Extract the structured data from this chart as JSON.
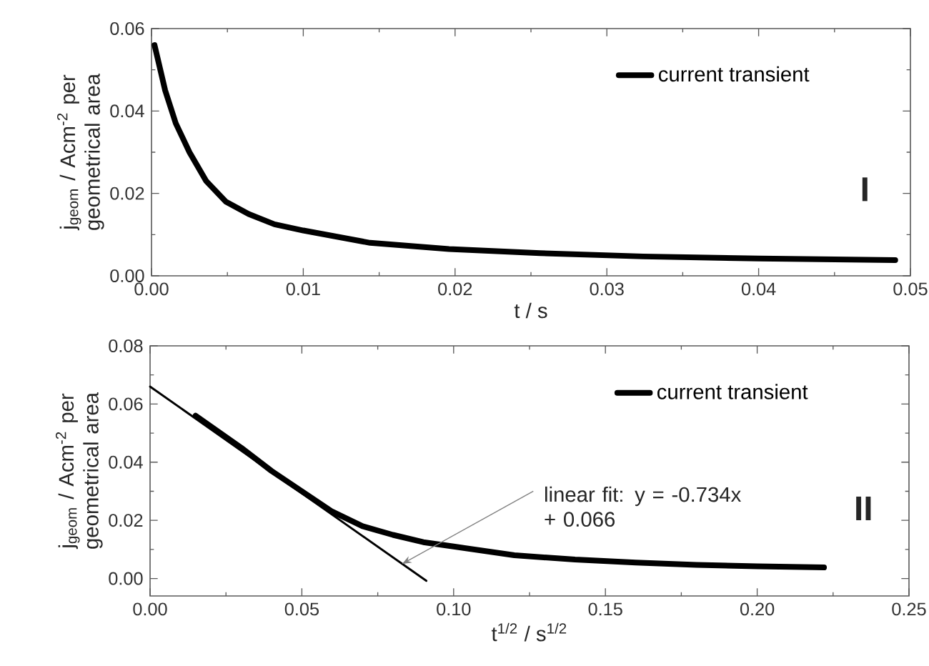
{
  "chart_data": [
    {
      "type": "line",
      "xlabel": "t / s",
      "ylabel": "j$_{geom}$ / Acm$^{-2}$ per geometrical area",
      "annotations": [
        "I"
      ],
      "series": [
        {
          "name": "current transient",
          "color": "#000000",
          "x": [
            0.0002,
            0.0009,
            0.0016,
            0.0025,
            0.0036,
            0.0049,
            0.0064,
            0.0081,
            0.01,
            0.0144,
            0.0196,
            0.0256,
            0.0324,
            0.04,
            0.049
          ],
          "values": [
            0.056,
            0.045,
            0.037,
            0.03,
            0.023,
            0.018,
            0.015,
            0.0125,
            0.011,
            0.008,
            0.0065,
            0.0055,
            0.0047,
            0.0042,
            0.0038
          ]
        }
      ],
      "xlim": [
        0,
        0.05
      ],
      "ylim": [
        0,
        0.06
      ],
      "xticks": [
        {
          "value": 0,
          "label": "0.00"
        },
        {
          "value": 0.01,
          "label": "0.01"
        },
        {
          "value": 0.02,
          "label": "0.02"
        },
        {
          "value": 0.03,
          "label": "0.03"
        },
        {
          "value": 0.04,
          "label": "0.04"
        },
        {
          "value": 0.05,
          "label": "0.05"
        }
      ],
      "yticks": [
        {
          "value": 0,
          "label": "0.00"
        },
        {
          "value": 0.02,
          "label": "0.02"
        },
        {
          "value": 0.04,
          "label": "0.04"
        },
        {
          "value": 0.06,
          "label": "0.06"
        }
      ],
      "legend": "top right",
      "marker": "none",
      "line_style": "solid"
    },
    {
      "type": "line",
      "xlabel": "t$^{1/2}$ / s$^{1/2}$",
      "ylabel": "j$_{geom}$ / Acm$^{-2}$ per geometrical area",
      "annotations": [
        {
          "text": "linear fit: y = -0.734x + 0.066",
          "x": 0.083,
          "y": 0.005
        },
        "II"
      ],
      "series": [
        {
          "name": "current transient",
          "color": "#000000",
          "x": [
            0.015,
            0.03,
            0.04,
            0.05,
            0.06,
            0.07,
            0.08,
            0.09,
            0.1,
            0.12,
            0.14,
            0.16,
            0.18,
            0.2,
            0.222
          ],
          "values": [
            0.056,
            0.045,
            0.037,
            0.03,
            0.023,
            0.018,
            0.015,
            0.0125,
            0.011,
            0.008,
            0.0065,
            0.0055,
            0.0047,
            0.0042,
            0.0038
          ]
        },
        {
          "color": "#000000",
          "x": [
            0,
            0.091
          ],
          "values": [
            0.066,
            -0.0008
          ]
        }
      ],
      "xlim": [
        0,
        0.25
      ],
      "ylim": [
        -0.006,
        0.08
      ],
      "xticks": [
        {
          "value": 0,
          "label": "0.00"
        },
        {
          "value": 0.05,
          "label": "0.05"
        },
        {
          "value": 0.1,
          "label": "0.10"
        },
        {
          "value": 0.15,
          "label": "0.15"
        },
        {
          "value": 0.2,
          "label": "0.20"
        },
        {
          "value": 0.25,
          "label": "0.25"
        }
      ],
      "yticks": [
        {
          "value": 0,
          "label": "0.00"
        },
        {
          "value": 0.02,
          "label": "0.02"
        },
        {
          "value": 0.04,
          "label": "0.04"
        },
        {
          "value": 0.06,
          "label": "0.06"
        },
        {
          "value": 0.08,
          "label": "0.08"
        }
      ],
      "legend": "top right",
      "marker": "none",
      "line_style": "solid"
    }
  ]
}
